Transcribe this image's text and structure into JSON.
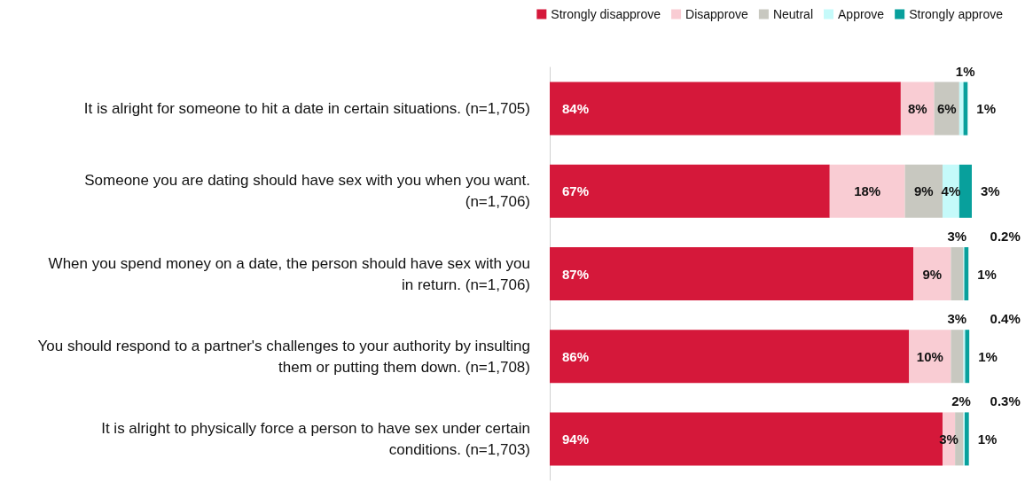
{
  "chart_data": {
    "type": "bar",
    "orientation": "horizontal",
    "stacked": true,
    "legend": "top right",
    "tick_labels": "y",
    "categories": [
      "It is alright for someone to hit a date in certain situations. (n=1,705)",
      "Someone you are dating should have sex with you when you want. (n=1,706)",
      "When you spend money on a date, the person should have sex with you in return. (n=1,706)",
      "You should respond to a partner's challenges to your authority by insulting them or putting them down. (n=1,708)",
      "It is alright to physically force a person to have sex under certain conditions. (n=1,703)"
    ],
    "series": [
      {
        "name": "Strongly disapprove",
        "color": "#d5183a",
        "values": [
          84,
          67,
          87,
          86,
          94
        ],
        "value_labels": [
          "84%",
          "67%",
          "87%",
          "86%",
          "94%"
        ]
      },
      {
        "name": "Disapprove",
        "color": "#f9ccd3",
        "values": [
          8,
          18,
          9,
          10,
          3
        ],
        "value_labels": [
          "8%",
          "18%",
          "9%",
          "10%",
          "3%"
        ]
      },
      {
        "name": "Neutral",
        "color": "#c8c8c0",
        "values": [
          6,
          9,
          3,
          3,
          2
        ],
        "value_labels": [
          "6%",
          "9%",
          "3%",
          "3%",
          "2%"
        ]
      },
      {
        "name": "Approve",
        "color": "#c5fafa",
        "values": [
          1,
          4,
          0.2,
          0.4,
          0.3
        ],
        "value_labels": [
          "1%",
          "4%",
          "0.2%",
          "0.4%",
          "0.3%"
        ]
      },
      {
        "name": "Strongly approve",
        "color": "#08a09c",
        "values": [
          1,
          3,
          1,
          1,
          1
        ],
        "value_labels": [
          "1%",
          "3%",
          "1%",
          "1%",
          "1%"
        ]
      }
    ]
  }
}
